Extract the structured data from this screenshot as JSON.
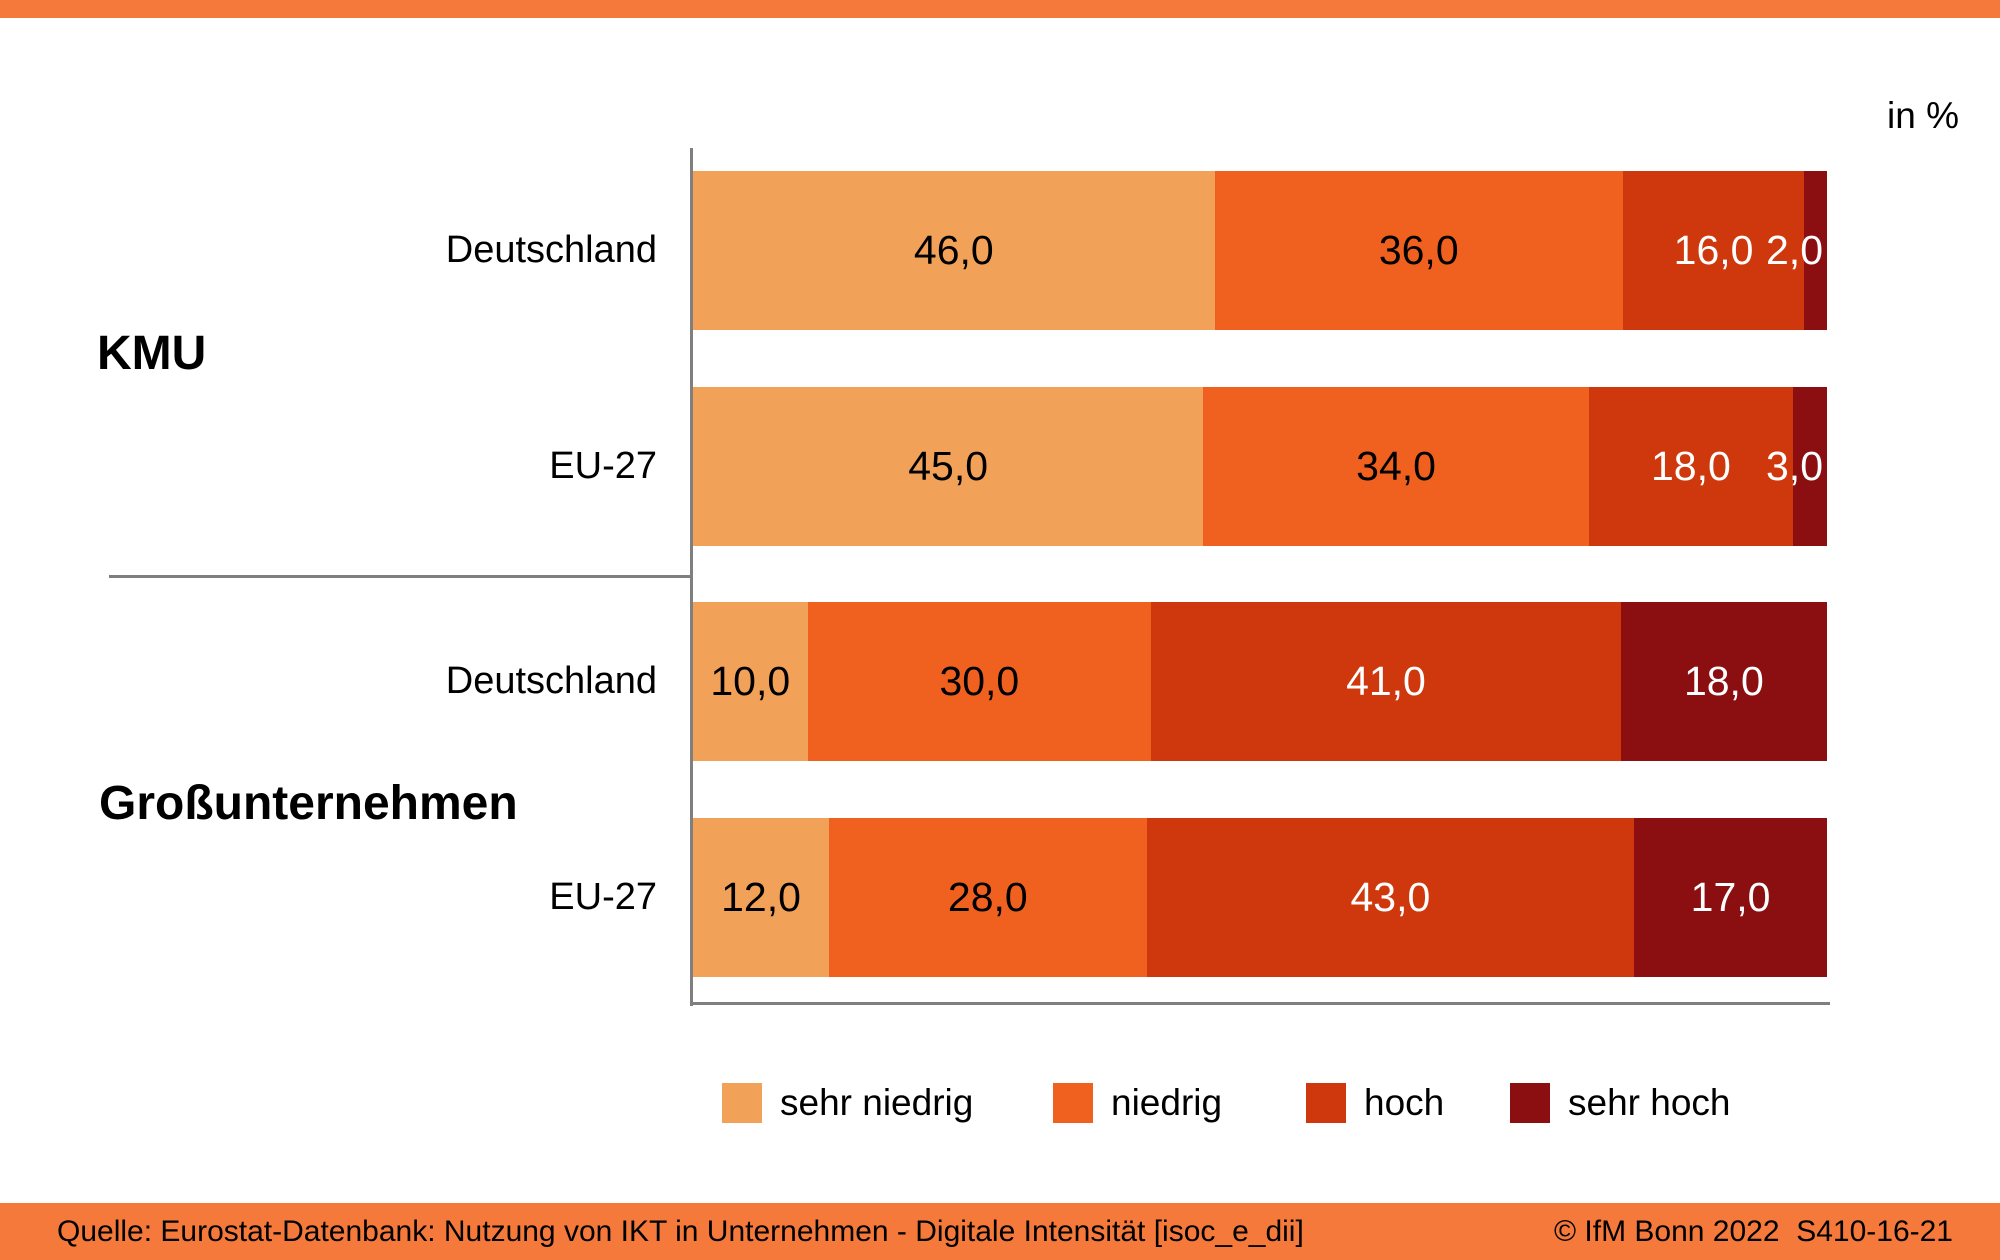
{
  "header": {
    "accent_bar_color": "#F4793A",
    "unit_label": "in %"
  },
  "chart_data": {
    "type": "bar",
    "orientation": "horizontal",
    "stacked": true,
    "xlim": [
      0,
      100
    ],
    "grid": false,
    "legend_position": "bottom",
    "series_colors": [
      "#F2A258",
      "#F0611F",
      "#CF380C",
      "#8B0E10"
    ],
    "legend": [
      "sehr niedrig",
      "niedrig",
      "hoch",
      "sehr hoch"
    ],
    "value_label_colors": [
      "#000000",
      "#000000",
      "#ffffff",
      "#ffffff"
    ],
    "axis_color": "#7f7f7f",
    "groups": [
      {
        "label": "KMU",
        "rows": [
          {
            "label": "Deutschland",
            "values": [
              46.0,
              36.0,
              16.0,
              2.0
            ],
            "values_display": [
              "46,0",
              "36,0",
              "16,0",
              "2,0"
            ]
          },
          {
            "label": "EU-27",
            "values": [
              45.0,
              34.0,
              18.0,
              3.0
            ],
            "values_display": [
              "45,0",
              "34,0",
              "18,0",
              "3,0"
            ]
          }
        ]
      },
      {
        "label": "Großunternehmen",
        "rows": [
          {
            "label": "Deutschland",
            "values": [
              10.0,
              30.0,
              41.0,
              18.0
            ],
            "values_display": [
              "10,0",
              "30,0",
              "41,0",
              "18,0"
            ]
          },
          {
            "label": "EU-27",
            "values": [
              12.0,
              28.0,
              43.0,
              17.0
            ],
            "values_display": [
              "12,0",
              "28,0",
              "43,0",
              "17,0"
            ]
          }
        ]
      }
    ]
  },
  "footer": {
    "bar_color": "#F4793A",
    "source": "Quelle: Eurostat-Datenbank: Nutzung von IKT in Unternehmen - Digitale Intensität [isoc_e_dii]",
    "copyright": "© IfM Bonn 2022  S410-16-21"
  }
}
